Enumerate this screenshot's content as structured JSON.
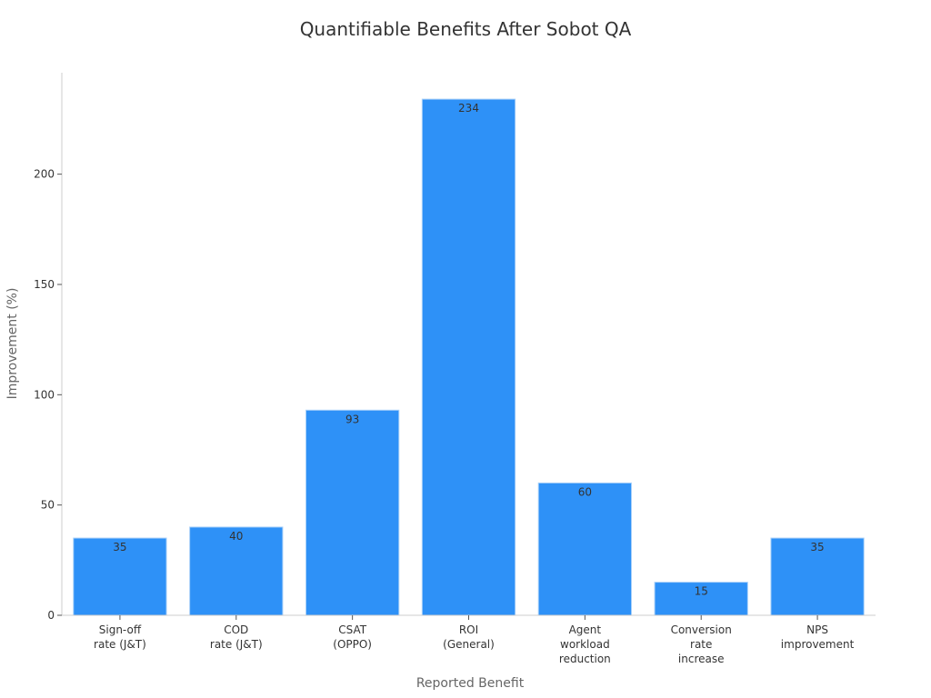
{
  "chart_data": {
    "type": "bar",
    "title": "Quantifiable Benefits After Sobot QA",
    "xlabel": "Reported Benefit",
    "ylabel": "Improvement (%)",
    "categories": [
      [
        "Sign-off",
        "rate (J&T)"
      ],
      [
        "COD",
        "rate (J&T)"
      ],
      [
        "CSAT",
        "(OPPO)"
      ],
      [
        "ROI",
        "(General)"
      ],
      [
        "Agent",
        "workload",
        "reduction"
      ],
      [
        "Conversion",
        "rate",
        "increase"
      ],
      [
        "NPS",
        "improvement"
      ]
    ],
    "values": [
      35,
      40,
      93,
      234,
      60,
      15,
      35
    ],
    "ylim": [
      0,
      246
    ],
    "yticks": [
      0,
      50,
      100,
      150,
      200
    ],
    "grid": false,
    "bar_color": "#2e91f7",
    "bar_edge_color": "#a8d0f9"
  }
}
